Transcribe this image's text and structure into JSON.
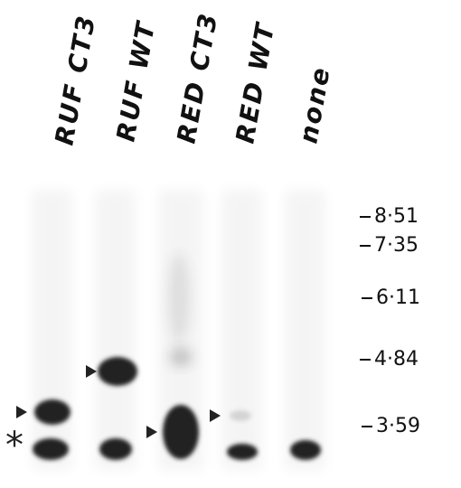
{
  "lanes": [
    "RUF CT3",
    "RUF WT",
    "RED CT3",
    "RED WT",
    "none"
  ],
  "markers": [
    "8·51",
    "7·35",
    "6·11",
    "4·84",
    "3·59"
  ],
  "asterisk": "*"
}
